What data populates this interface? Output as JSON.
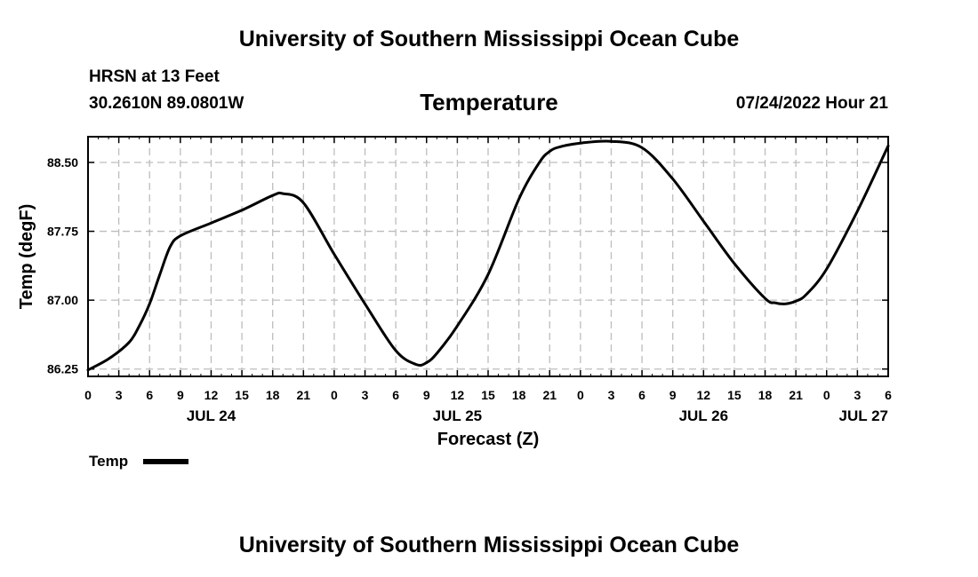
{
  "header": {
    "title": "University of Southern Mississippi Ocean Cube",
    "station": "HRSN at 13 Feet",
    "location": "30.2610N  89.0801W",
    "datetime": "07/24/2022 Hour 21"
  },
  "footer": {
    "title": "University of Southern Mississippi Ocean Cube"
  },
  "chart_data": {
    "type": "line",
    "title": "Temperature",
    "xlabel": "Forecast (Z)",
    "ylabel": "Temp (degF)",
    "ylim": [
      86.17,
      88.78
    ],
    "xlim": [
      0,
      78
    ],
    "grid": true,
    "x_tick_labels": [
      "0",
      "3",
      "6",
      "9",
      "12",
      "15",
      "18",
      "21",
      "0",
      "3",
      "6",
      "9",
      "12",
      "15",
      "18",
      "21",
      "0",
      "3",
      "6",
      "9",
      "12",
      "15",
      "18",
      "21",
      "0",
      "3",
      "6"
    ],
    "day_labels": [
      {
        "label": "JUL 24",
        "hour": 12
      },
      {
        "label": "JUL 25",
        "hour": 36
      },
      {
        "label": "JUL 26",
        "hour": 60
      },
      {
        "label": "JUL 27",
        "hour": 78
      }
    ],
    "y_ticks": [
      86.25,
      87.0,
      87.75,
      88.5
    ],
    "y_tick_labels": [
      "86.25",
      "87.00",
      "87.75",
      "88.50"
    ],
    "legend": {
      "label": "Temp",
      "position": "bottom-left"
    },
    "series": [
      {
        "name": "Temp",
        "color": "#000000",
        "x": [
          0,
          2,
          4,
          5,
          6,
          7,
          8,
          9,
          12,
          15,
          18,
          19,
          21,
          24,
          27,
          30,
          32,
          33,
          34,
          36,
          39,
          42,
          44,
          45,
          46,
          48,
          51,
          54,
          57,
          60,
          63,
          66,
          67,
          68,
          69,
          70,
          72,
          75,
          78
        ],
        "values": [
          86.24,
          86.36,
          86.54,
          86.72,
          86.96,
          87.28,
          87.58,
          87.7,
          87.84,
          87.98,
          88.14,
          88.16,
          88.06,
          87.5,
          86.96,
          86.45,
          86.3,
          86.32,
          86.42,
          86.72,
          87.28,
          88.1,
          88.5,
          88.62,
          88.67,
          88.71,
          88.73,
          88.66,
          88.32,
          87.86,
          87.4,
          87.02,
          86.97,
          86.96,
          86.99,
          87.06,
          87.34,
          87.97,
          88.68
        ]
      }
    ]
  }
}
